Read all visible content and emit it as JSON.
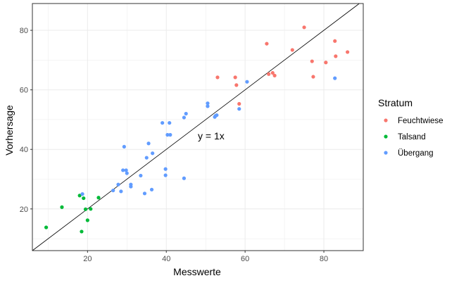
{
  "chart_data": {
    "type": "scatter",
    "title": "",
    "xlabel": "Messwerte",
    "ylabel": "Vorhersage",
    "xlim": [
      6,
      90
    ],
    "ylim": [
      6,
      89
    ],
    "xticks": [
      20,
      40,
      60,
      80
    ],
    "yticks": [
      20,
      40,
      60,
      80
    ],
    "grid": true,
    "legend": {
      "title": "Stratum",
      "placement": "right"
    },
    "annotation": {
      "text": "y = 1x",
      "x": 48,
      "y": 44.5
    },
    "reference_line": {
      "slope": 1,
      "intercept": 0
    },
    "series": [
      {
        "name": "Feuchtwiese",
        "color": "#F8766D",
        "points": [
          [
            53,
            64.2
          ],
          [
            57.5,
            64.2
          ],
          [
            57.8,
            61.6
          ],
          [
            58.5,
            55.3
          ],
          [
            65.5,
            75.5
          ],
          [
            66,
            65.3
          ],
          [
            67,
            65.7
          ],
          [
            67.5,
            64.8
          ],
          [
            72,
            73.4
          ],
          [
            75,
            81
          ],
          [
            77,
            69.6
          ],
          [
            77.3,
            64.4
          ],
          [
            80.5,
            69.2
          ],
          [
            82.8,
            76.4
          ],
          [
            83,
            71.3
          ],
          [
            86,
            72.7
          ]
        ]
      },
      {
        "name": "Talsand",
        "color": "#00BA38",
        "points": [
          [
            9.5,
            13.8
          ],
          [
            13.5,
            20.6
          ],
          [
            18,
            24.5
          ],
          [
            18.5,
            12.4
          ],
          [
            19,
            23.6
          ],
          [
            19.5,
            19.9
          ],
          [
            20,
            16.2
          ],
          [
            20.8,
            20
          ],
          [
            22.8,
            23.8
          ]
        ]
      },
      {
        "name": "Übergang",
        "color": "#619CFF",
        "points": [
          [
            18.7,
            25
          ],
          [
            26.5,
            26.2
          ],
          [
            27.8,
            28.2
          ],
          [
            28.5,
            25.9
          ],
          [
            29,
            33
          ],
          [
            29.3,
            40.9
          ],
          [
            29.8,
            33
          ],
          [
            30,
            32
          ],
          [
            31,
            27.5
          ],
          [
            31,
            28.2
          ],
          [
            33.5,
            31.2
          ],
          [
            34.5,
            25.2
          ],
          [
            35,
            37.2
          ],
          [
            35.5,
            42
          ],
          [
            36.3,
            26.5
          ],
          [
            36.5,
            38.7
          ],
          [
            39,
            48.9
          ],
          [
            39.8,
            33.4
          ],
          [
            39.8,
            31.3
          ],
          [
            40.3,
            44.9
          ],
          [
            40.8,
            48.9
          ],
          [
            41,
            44.9
          ],
          [
            44.5,
            30.3
          ],
          [
            44.5,
            50.7
          ],
          [
            45,
            52
          ],
          [
            50.5,
            55.5
          ],
          [
            50.5,
            54.5
          ],
          [
            52.3,
            50.9
          ],
          [
            52.5,
            51.3
          ],
          [
            52.8,
            51.5
          ],
          [
            58.5,
            53.6
          ],
          [
            60.5,
            62.7
          ],
          [
            82.8,
            63.9
          ]
        ]
      }
    ]
  }
}
